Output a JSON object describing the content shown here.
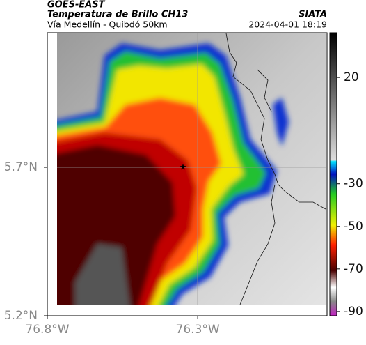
{
  "header": {
    "satellite": "GOES-EAST",
    "product": "Temperatura de Brillo CH13",
    "source": "SIATA",
    "region": "Vía Medellín - Quibdó 50km",
    "datetime": "2024-04-01 18:19"
  },
  "map": {
    "lon_range": [
      -76.8,
      -75.87
    ],
    "lat_range": [
      5.2,
      6.153
    ],
    "xticks": [
      {
        "value": -76.8,
        "label": "76.8°W"
      },
      {
        "value": -76.3,
        "label": "76.3°W"
      }
    ],
    "yticks": [
      {
        "value": 5.2,
        "label": "5.2°N"
      },
      {
        "value": 5.7,
        "label": "5.7°N"
      }
    ]
  },
  "colorbar": {
    "lim": [
      -92,
      41
    ],
    "ticks": [
      20,
      -30,
      -50,
      -70,
      -90
    ]
  }
}
